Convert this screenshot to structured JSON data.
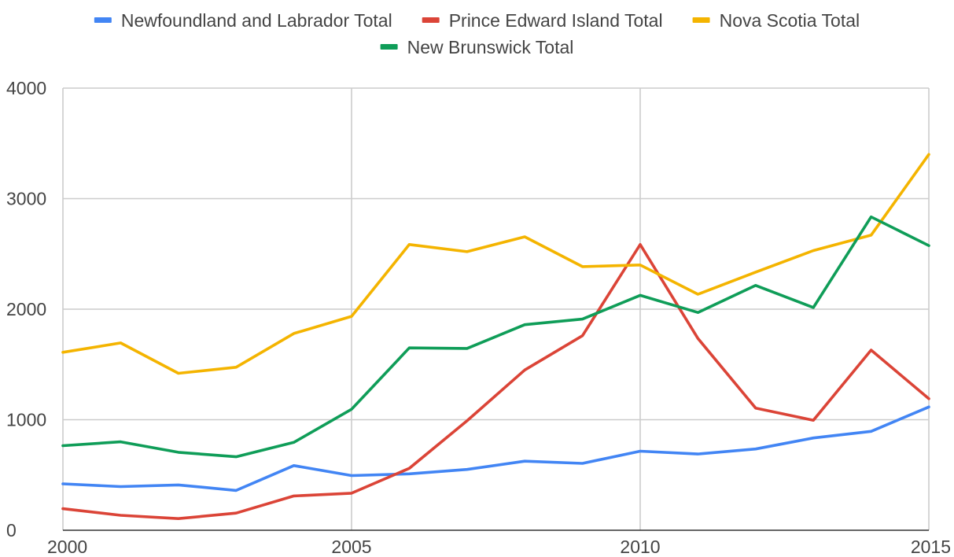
{
  "chart_data": {
    "type": "line",
    "title": "",
    "xlabel": "",
    "ylabel": "",
    "x": [
      2000,
      2001,
      2002,
      2003,
      2004,
      2005,
      2006,
      2007,
      2008,
      2009,
      2010,
      2011,
      2012,
      2013,
      2014,
      2015
    ],
    "xlim": [
      2000,
      2015
    ],
    "ylim": [
      0,
      4000
    ],
    "x_ticks": [
      "2000",
      "2005",
      "2010",
      "2015"
    ],
    "y_ticks": [
      "0",
      "1000",
      "2000",
      "3000",
      "4000"
    ],
    "grid": true,
    "legend_position": "top",
    "series": [
      {
        "name": "Newfoundland and Labrador Total",
        "color": "#4285f4",
        "values": [
          420,
          395,
          410,
          360,
          585,
          495,
          510,
          550,
          625,
          605,
          715,
          690,
          735,
          835,
          895,
          1115
        ]
      },
      {
        "name": "Prince Edward Island Total",
        "color": "#db4437",
        "values": [
          195,
          135,
          105,
          155,
          310,
          335,
          560,
          990,
          1450,
          1760,
          2585,
          1735,
          1105,
          995,
          1630,
          1190
        ]
      },
      {
        "name": "Nova Scotia Total",
        "color": "#f4b400",
        "values": [
          1610,
          1695,
          1420,
          1475,
          1780,
          1935,
          2585,
          2520,
          2655,
          2385,
          2400,
          2135,
          2335,
          2530,
          2670,
          3400
        ]
      },
      {
        "name": "New Brunswick Total",
        "color": "#0f9d58",
        "values": [
          765,
          800,
          705,
          665,
          795,
          1095,
          1650,
          1645,
          1860,
          1910,
          2125,
          1970,
          2215,
          2015,
          2835,
          2575
        ]
      }
    ]
  }
}
